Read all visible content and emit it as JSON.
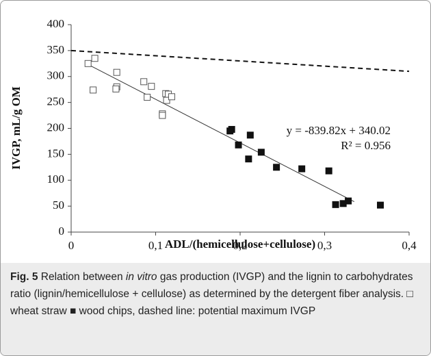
{
  "chart_data": {
    "type": "scatter",
    "x_label": "ADL/(hemicellulose+cellulose)",
    "y_label": "IVGP, mL/g OM",
    "xlim": [
      0,
      0.4
    ],
    "xticks": [
      0,
      {
        "value": 0.1,
        "label": "0,1"
      },
      {
        "value": 0.2,
        "label": "0,2"
      },
      {
        "value": 0.3,
        "label": "0,3"
      },
      {
        "value": 0.4,
        "label": "0,4"
      }
    ],
    "ylim": [
      0,
      400
    ],
    "yticks": [
      0,
      50,
      100,
      150,
      200,
      250,
      300,
      350,
      400
    ],
    "series": [
      {
        "marker": "open",
        "color": "#555555",
        "x": [
          0.02,
          0.028,
          0.026,
          0.054,
          0.054,
          0.053,
          0.086,
          0.095,
          0.09,
          0.112,
          0.115,
          0.113,
          0.119,
          0.108,
          0.108
        ],
        "y": [
          325,
          335,
          274,
          308,
          280,
          276,
          290,
          281,
          260,
          267,
          266,
          254,
          261,
          228,
          225
        ]
      },
      {
        "marker": "filled",
        "color": "#111111",
        "x": [
          0.188,
          0.19,
          0.198,
          0.212,
          0.21,
          0.225,
          0.243,
          0.273,
          0.305,
          0.313,
          0.322,
          0.328,
          0.366
        ],
        "y": [
          195,
          198,
          168,
          187,
          141,
          154,
          125,
          122,
          118,
          53,
          55,
          60,
          52
        ]
      }
    ],
    "trend_line": {
      "x": [
        0.02,
        0.335
      ],
      "y": [
        323.2,
        58.7
      ],
      "color": "#333333"
    },
    "max_line": {
      "x": [
        0,
        0.4
      ],
      "y": [
        350,
        310
      ],
      "color": "#111111",
      "dashed": true
    },
    "annotations": [
      "y = -839.82x + 340.02",
      "R² = 0.956"
    ]
  },
  "caption": {
    "label": "Fig. 5",
    "text_before": "Relation between ",
    "italic": "in vitro",
    "text_after": " gas production (IVGP) and the lignin to carbohydrates ratio (lignin/hemicellulose + cellulose) as determined by the detergent fiber analysis. □ wheat straw ■ wood chips, dashed line: potential maximum IVGP"
  }
}
